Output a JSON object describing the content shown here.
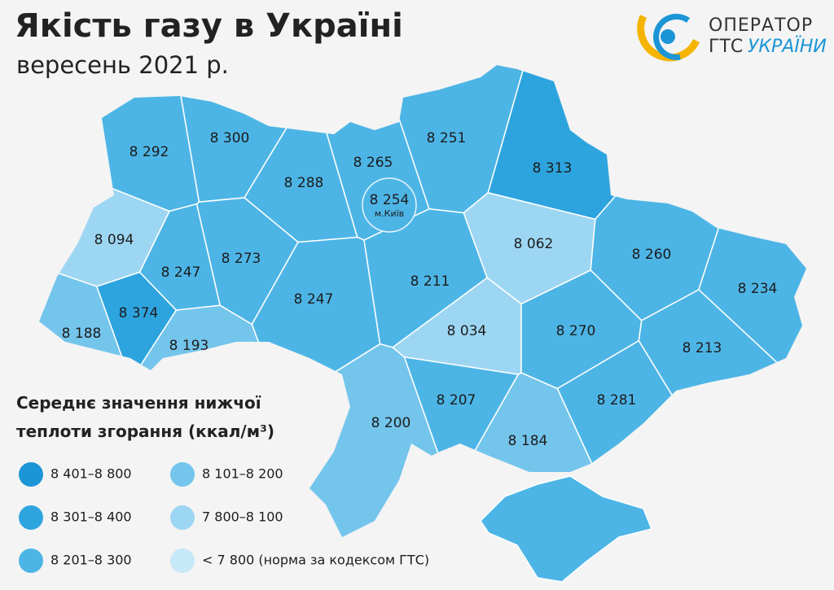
{
  "header": {
    "title": "Якість газу в Україні",
    "subtitle": "вересень 2021 р."
  },
  "logo": {
    "line1": "ОПЕРАТОР",
    "line2a": "ГТС",
    "line2b": "УКРАЇНИ"
  },
  "map": {
    "regions": [
      {
        "label": "8 292",
        "color": "#4db5e6"
      },
      {
        "label": "8 300",
        "color": "#4db5e6"
      },
      {
        "label": "8 288",
        "color": "#4db5e6"
      },
      {
        "label": "8 265",
        "color": "#4db5e6"
      },
      {
        "label": "8 251",
        "color": "#4db5e6"
      },
      {
        "label": "8 313",
        "color": "#2ea4df"
      },
      {
        "label": "8 094",
        "color": "#9dd6f2"
      },
      {
        "label": "8 247",
        "color": "#4db5e6"
      },
      {
        "label": "8 273",
        "color": "#4db5e6"
      },
      {
        "label": "8 247",
        "color": "#4db5e6"
      },
      {
        "label": "8 211",
        "color": "#4db5e6"
      },
      {
        "label": "8 062",
        "color": "#9dd6f2"
      },
      {
        "label": "8 260",
        "color": "#4db5e6"
      },
      {
        "label": "8 234",
        "color": "#4db5e6"
      },
      {
        "label": "8 374",
        "color": "#2ea4df"
      },
      {
        "label": "8 188",
        "color": "#74c5ec"
      },
      {
        "label": "8 193",
        "color": "#74c5ec"
      },
      {
        "label": "8 034",
        "color": "#9dd6f2"
      },
      {
        "label": "8 270",
        "color": "#4db5e6"
      },
      {
        "label": "8 213",
        "color": "#4db5e6"
      },
      {
        "label": "8 207",
        "color": "#4db5e6"
      },
      {
        "label": "8 281",
        "color": "#4db5e6"
      },
      {
        "label": "8 200",
        "color": "#74c5ec"
      },
      {
        "label": "8 184",
        "color": "#74c5ec"
      }
    ],
    "kyiv": {
      "label": "8 254",
      "sublabel": "м.Київ",
      "color": "#4db5e6"
    }
  },
  "legend": {
    "title": [
      "Середнє значення нижчої",
      "теплоти згорання (ккал/м³)"
    ],
    "items": [
      {
        "label": "8 401–8 800",
        "color": "#1b95d6"
      },
      {
        "label": "8 301–8 400",
        "color": "#2ea4df"
      },
      {
        "label": "8 201–8 300",
        "color": "#4db5e6"
      },
      {
        "label": "8 101–8 200",
        "color": "#74c5ec"
      },
      {
        "label": "7 800–8 100",
        "color": "#9dd6f2"
      },
      {
        "label": "< 7 800 (норма за кодексом ГТС)",
        "color": "#c7e8f7"
      }
    ]
  }
}
